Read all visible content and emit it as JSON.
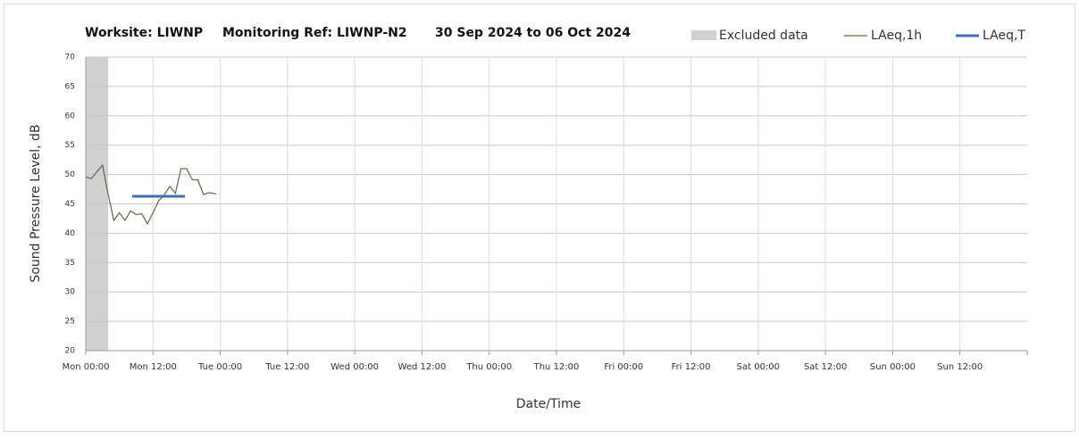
{
  "chart_data": {
    "type": "line",
    "title": [
      "Worksite: LIWNP",
      "Monitoring Ref: LIWNP-N2",
      "30 Sep 2024 to 06 Oct 2024"
    ],
    "xlabel": "Date/Time",
    "ylabel": "Sound Pressure Level, dB",
    "xlim": [
      0,
      168
    ],
    "xticks": [
      {
        "value": 0,
        "label": "Mon 00:00"
      },
      {
        "value": 12,
        "label": "Mon 12:00"
      },
      {
        "value": 24,
        "label": "Tue 00:00"
      },
      {
        "value": 36,
        "label": "Tue 12:00"
      },
      {
        "value": 48,
        "label": "Wed 00:00"
      },
      {
        "value": 60,
        "label": "Wed 12:00"
      },
      {
        "value": 72,
        "label": "Thu 00:00"
      },
      {
        "value": 84,
        "label": "Thu 12:00"
      },
      {
        "value": 96,
        "label": "Fri 00:00"
      },
      {
        "value": 108,
        "label": "Fri 12:00"
      },
      {
        "value": 120,
        "label": "Sat 00:00"
      },
      {
        "value": 132,
        "label": "Sat 12:00"
      },
      {
        "value": 144,
        "label": "Sun 00:00"
      },
      {
        "value": 156,
        "label": "Sun 12:00"
      }
    ],
    "ylim": [
      20,
      70
    ],
    "yticks": [
      20,
      25,
      30,
      35,
      40,
      45,
      50,
      55,
      60,
      65,
      70
    ],
    "grid": true,
    "excluded": {
      "name": "Excluded data",
      "color": "#d0d0d0",
      "x": [
        0,
        4
      ]
    },
    "series": [
      {
        "name": "LAeq,1h",
        "color": "#5b6b48",
        "x": [
          0,
          1,
          2,
          3,
          3.7,
          5,
          6,
          7,
          8,
          9,
          10,
          11,
          12,
          13,
          14,
          15,
          16,
          17,
          18,
          19,
          20,
          21,
          22,
          23.3
        ],
        "values": [
          49.6,
          49.3,
          50.5,
          51.6,
          48,
          42.2,
          43.5,
          42.2,
          43.8,
          43.2,
          43.3,
          41.6,
          43.5,
          45.5,
          46.5,
          48,
          46.8,
          51,
          51,
          49.1,
          49.1,
          46.6,
          46.9,
          46.7
        ]
      },
      {
        "name": "LAeq,T",
        "color": "#3f6fb0",
        "x": [
          8.3,
          17.7
        ],
        "values": [
          46.3,
          46.3
        ]
      }
    ]
  }
}
